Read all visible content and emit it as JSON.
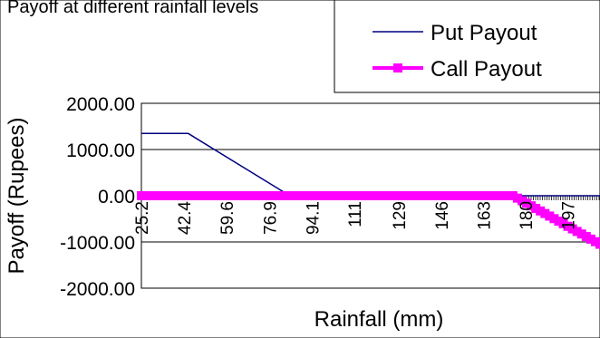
{
  "chart_data": {
    "type": "line",
    "title": "Payoff at different rainfall levels",
    "xlabel": "Rainfall (mm)",
    "ylabel": "Payoff (Rupees)",
    "ylim": [
      -2000,
      2000
    ],
    "y_ticks": [
      "2000.00",
      "1000.00",
      "0.00",
      "-1000.00",
      "-2000.00"
    ],
    "y_tick_values": [
      2000,
      1000,
      0,
      -1000,
      -2000
    ],
    "x_range": [
      25.2,
      210
    ],
    "x_tick_labels": [
      "25.2",
      "42.4",
      "59.6",
      "76.9",
      "94.1",
      "111",
      "129",
      "146",
      "163",
      "180",
      "197"
    ],
    "x_tick_values": [
      25.2,
      42.4,
      59.6,
      76.9,
      94.1,
      111,
      129,
      146,
      163,
      180,
      197
    ],
    "grid": true,
    "legend_position": "top-right",
    "series": [
      {
        "name": "Put Payout",
        "color": "#000080",
        "x": [
          25.2,
          44.0,
          85.0,
          210.0
        ],
        "y": [
          1350,
          1350,
          0,
          0
        ]
      },
      {
        "name": "Call Payout",
        "color": "#FF00FF",
        "marker": "square",
        "x": [
          25.2,
          175.0,
          210.0
        ],
        "y": [
          0,
          0,
          -1050
        ]
      }
    ]
  }
}
